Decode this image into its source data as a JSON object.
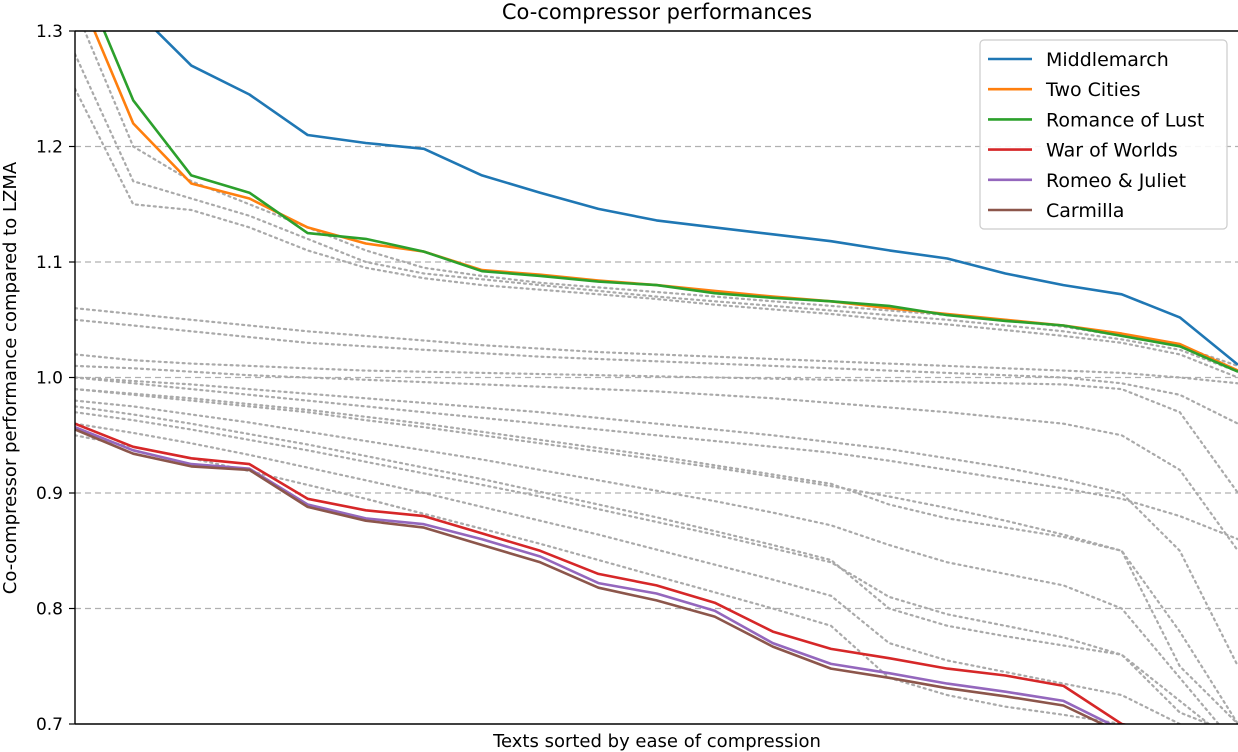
{
  "chart_data": {
    "type": "line",
    "title": "Co-compressor performances",
    "xlabel": "Texts sorted by ease of compression",
    "ylabel": "Co-compressor performance compared to LZMA",
    "ylim": [
      0.7,
      1.3
    ],
    "yticks": [
      "0.7",
      "0.8",
      "0.9",
      "1.0",
      "1.1",
      "1.2",
      "1.3"
    ],
    "grid": "horizontal-dashed",
    "legend_position": "top-right",
    "x": [
      0,
      1,
      2,
      3,
      4,
      5,
      6,
      7,
      8,
      9,
      10,
      11,
      12,
      13,
      14,
      15,
      16,
      17,
      18,
      19,
      20
    ],
    "series": [
      {
        "name": "Middlemarch",
        "color": "#1f77b4",
        "values": [
          1.4,
          1.32,
          1.27,
          1.245,
          1.21,
          1.203,
          1.198,
          1.175,
          1.16,
          1.146,
          1.136,
          1.13,
          1.124,
          1.118,
          1.11,
          1.103,
          1.09,
          1.08,
          1.072,
          1.052,
          1.011
        ]
      },
      {
        "name": "Two Cities",
        "color": "#ff7f0e",
        "values": [
          1.34,
          1.22,
          1.168,
          1.155,
          1.13,
          1.116,
          1.109,
          1.093,
          1.089,
          1.084,
          1.08,
          1.075,
          1.07,
          1.066,
          1.06,
          1.055,
          1.05,
          1.045,
          1.038,
          1.029,
          1.006
        ]
      },
      {
        "name": "Romance of Lust",
        "color": "#2ca02c",
        "values": [
          1.36,
          1.24,
          1.175,
          1.16,
          1.125,
          1.12,
          1.109,
          1.092,
          1.088,
          1.083,
          1.08,
          1.073,
          1.069,
          1.066,
          1.062,
          1.054,
          1.049,
          1.045,
          1.036,
          1.027,
          1.005
        ]
      },
      {
        "name": "War of Worlds",
        "color": "#d62728",
        "values": [
          0.96,
          0.94,
          0.93,
          0.925,
          0.895,
          0.885,
          0.88,
          0.865,
          0.85,
          0.83,
          0.82,
          0.805,
          0.78,
          0.765,
          0.757,
          0.748,
          0.742,
          0.733,
          0.7,
          0.69,
          0.68
        ]
      },
      {
        "name": "Romeo & Juliet",
        "color": "#9467bd",
        "values": [
          0.957,
          0.937,
          0.925,
          0.921,
          0.89,
          0.878,
          0.873,
          0.86,
          0.845,
          0.822,
          0.813,
          0.798,
          0.77,
          0.752,
          0.744,
          0.735,
          0.728,
          0.72,
          0.695,
          0.685,
          0.675
        ]
      },
      {
        "name": "Carmilla",
        "color": "#8c564b",
        "values": [
          0.955,
          0.934,
          0.923,
          0.92,
          0.888,
          0.876,
          0.87,
          0.855,
          0.84,
          0.818,
          0.807,
          0.793,
          0.767,
          0.748,
          0.74,
          0.731,
          0.724,
          0.716,
          0.692,
          0.682,
          0.672
        ]
      }
    ],
    "background_series_color": "#aaaaaa",
    "background_series": [
      [
        1.32,
        1.2,
        1.17,
        1.15,
        1.13,
        1.11,
        1.095,
        1.088,
        1.082,
        1.078,
        1.074,
        1.07,
        1.066,
        1.062,
        1.058,
        1.054,
        1.05,
        1.044,
        1.036,
        1.027,
        1.01
      ],
      [
        1.28,
        1.17,
        1.155,
        1.14,
        1.12,
        1.1,
        1.09,
        1.085,
        1.08,
        1.075,
        1.07,
        1.066,
        1.062,
        1.058,
        1.054,
        1.05,
        1.045,
        1.04,
        1.033,
        1.024,
        1.005
      ],
      [
        1.25,
        1.15,
        1.145,
        1.13,
        1.11,
        1.095,
        1.086,
        1.08,
        1.076,
        1.072,
        1.068,
        1.063,
        1.059,
        1.055,
        1.05,
        1.046,
        1.041,
        1.036,
        1.03,
        1.02,
        1.0
      ],
      [
        1.06,
        1.055,
        1.05,
        1.045,
        1.04,
        1.036,
        1.032,
        1.028,
        1.025,
        1.022,
        1.02,
        1.018,
        1.016,
        1.014,
        1.012,
        1.01,
        1.008,
        1.006,
        1.004,
        1.0,
        0.995
      ],
      [
        1.05,
        1.045,
        1.04,
        1.035,
        1.03,
        1.027,
        1.024,
        1.021,
        1.018,
        1.016,
        1.014,
        1.012,
        1.01,
        1.008,
        1.006,
        1.004,
        1.002,
        1.0,
        0.995,
        0.985,
        0.96
      ],
      [
        1.02,
        1.015,
        1.012,
        1.01,
        1.008,
        1.006,
        1.005,
        1.004,
        1.003,
        1.002,
        1.001,
        1.0,
        0.999,
        0.998,
        0.997,
        0.996,
        0.995,
        0.994,
        0.99,
        0.97,
        0.9
      ],
      [
        1.01,
        1.008,
        1.005,
        1.002,
        1.0,
        0.998,
        0.996,
        0.994,
        0.992,
        0.99,
        0.988,
        0.985,
        0.982,
        0.978,
        0.974,
        0.97,
        0.965,
        0.96,
        0.95,
        0.92,
        0.85
      ],
      [
        1.0,
        0.997,
        0.994,
        0.99,
        0.986,
        0.982,
        0.978,
        0.974,
        0.97,
        0.965,
        0.96,
        0.955,
        0.95,
        0.944,
        0.938,
        0.93,
        0.922,
        0.912,
        0.9,
        0.85,
        0.75
      ],
      [
        0.99,
        0.985,
        0.98,
        0.975,
        0.97,
        0.963,
        0.957,
        0.95,
        0.943,
        0.936,
        0.929,
        0.922,
        0.914,
        0.906,
        0.897,
        0.887,
        0.876,
        0.864,
        0.85,
        0.78,
        0.7
      ],
      [
        0.98,
        0.975,
        0.968,
        0.961,
        0.953,
        0.945,
        0.937,
        0.929,
        0.92,
        0.911,
        0.902,
        0.893,
        0.883,
        0.872,
        0.855,
        0.84,
        0.83,
        0.82,
        0.8,
        0.74,
        0.68
      ],
      [
        0.97,
        0.963,
        0.955,
        0.946,
        0.937,
        0.927,
        0.917,
        0.907,
        0.897,
        0.886,
        0.875,
        0.864,
        0.852,
        0.84,
        0.81,
        0.795,
        0.785,
        0.775,
        0.76,
        0.72,
        0.68
      ],
      [
        0.96,
        0.952,
        0.943,
        0.933,
        0.922,
        0.911,
        0.9,
        0.888,
        0.876,
        0.864,
        0.851,
        0.838,
        0.825,
        0.811,
        0.77,
        0.755,
        0.745,
        0.735,
        0.725,
        0.7,
        0.68
      ],
      [
        0.95,
        0.94,
        0.93,
        0.919,
        0.907,
        0.895,
        0.882,
        0.869,
        0.856,
        0.842,
        0.828,
        0.814,
        0.8,
        0.785,
        0.74,
        0.725,
        0.715,
        0.708,
        0.7,
        0.69,
        0.68
      ],
      [
        1.0,
        0.995,
        0.99,
        0.985,
        0.98,
        0.975,
        0.97,
        0.965,
        0.96,
        0.955,
        0.95,
        0.945,
        0.94,
        0.935,
        0.928,
        0.92,
        0.912,
        0.904,
        0.895,
        0.88,
        0.86
      ],
      [
        0.99,
        0.986,
        0.982,
        0.977,
        0.972,
        0.966,
        0.96,
        0.953,
        0.946,
        0.939,
        0.932,
        0.924,
        0.916,
        0.908,
        0.89,
        0.878,
        0.87,
        0.862,
        0.85,
        0.75,
        0.7
      ],
      [
        0.975,
        0.968,
        0.96,
        0.951,
        0.942,
        0.932,
        0.922,
        0.912,
        0.901,
        0.89,
        0.879,
        0.867,
        0.855,
        0.842,
        0.8,
        0.785,
        0.776,
        0.768,
        0.76,
        0.71,
        0.69
      ]
    ]
  }
}
